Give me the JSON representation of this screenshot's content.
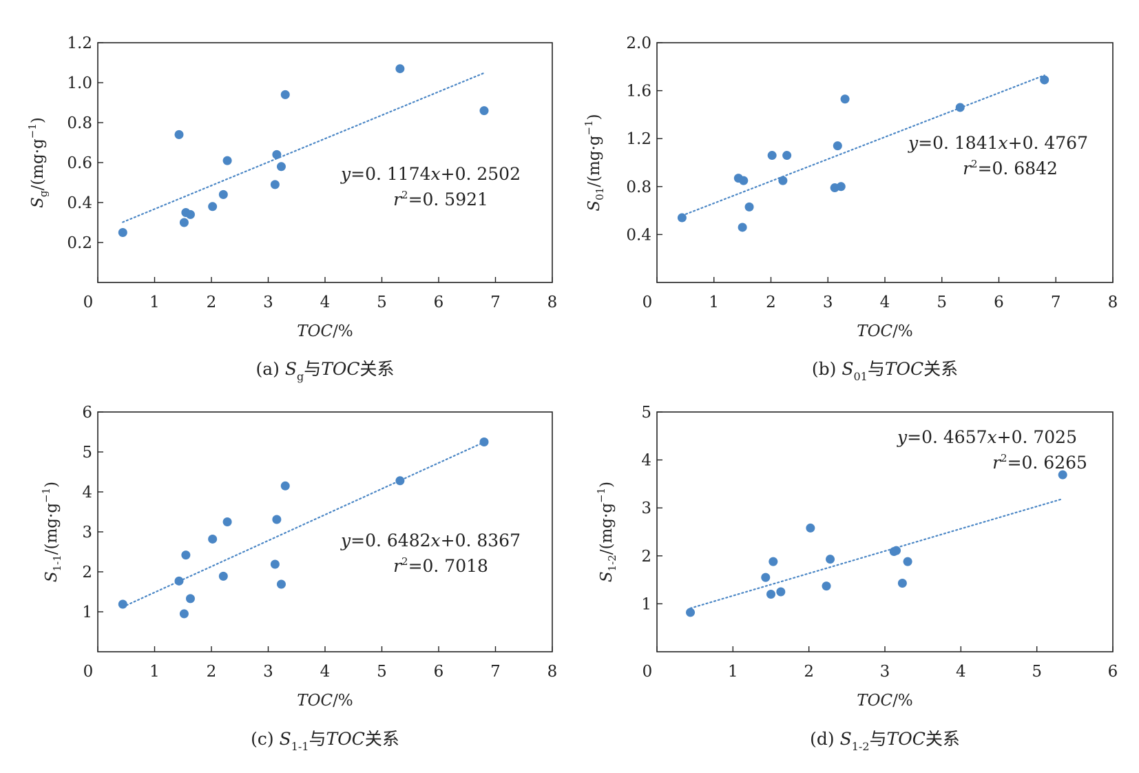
{
  "chart_data": [
    {
      "type": "scatter",
      "panel": "a",
      "caption": {
        "prefix": "(a)",
        "sym": "S",
        "sub": "g",
        "mid": "与",
        "var": "TOC",
        "suffix": "关系"
      },
      "ylabel": {
        "sym": "S",
        "sub": "g",
        "unit": "/(mg·g",
        "exp": "−1",
        "close": ")"
      },
      "xlabel": {
        "var": "TOC",
        "unit": "/%"
      },
      "xlim": [
        0,
        8
      ],
      "ylim": [
        0,
        1.2
      ],
      "xticks": [
        0,
        1,
        2,
        3,
        4,
        5,
        6,
        7,
        8
      ],
      "yticks": [
        0.2,
        0.4,
        0.6,
        0.8,
        1.0,
        1.2
      ],
      "ytick_labels": [
        "0.2",
        "0.4",
        "0.6",
        "0.8",
        "1.0",
        "1.2"
      ],
      "x": [
        0.44,
        1.43,
        1.52,
        1.55,
        1.63,
        2.02,
        2.21,
        2.28,
        3.12,
        3.15,
        3.23,
        3.3,
        5.32,
        6.8
      ],
      "y": [
        0.25,
        0.74,
        0.3,
        0.35,
        0.34,
        0.38,
        0.44,
        0.61,
        0.49,
        0.64,
        0.58,
        0.94,
        1.07,
        0.86
      ],
      "fit": {
        "slope": 0.1174,
        "intercept": 0.2502,
        "x_range": [
          0.44,
          6.8
        ]
      },
      "equation": {
        "y": "y",
        "eq": "=0. 1174",
        "x": "x",
        "rest": "+0. 2502"
      },
      "r2": {
        "r": "r",
        "sup": "2",
        "val": "=0. 5921"
      }
    },
    {
      "type": "scatter",
      "panel": "b",
      "caption": {
        "prefix": "(b)",
        "sym": "S",
        "sub": "01",
        "mid": "与",
        "var": "TOC",
        "suffix": "关系"
      },
      "ylabel": {
        "sym": "S",
        "sub": "01",
        "unit": "/(mg·g",
        "exp": "−1",
        "close": ")"
      },
      "xlabel": {
        "var": "TOC",
        "unit": "/%"
      },
      "xlim": [
        0,
        8
      ],
      "ylim": [
        0,
        2.0
      ],
      "xticks": [
        0,
        1,
        2,
        3,
        4,
        5,
        6,
        7,
        8
      ],
      "yticks": [
        0.4,
        0.8,
        1.2,
        1.6,
        2.0
      ],
      "ytick_labels": [
        "0.4",
        "0.8",
        "1.2",
        "1.6",
        "2.0"
      ],
      "x": [
        0.44,
        1.43,
        1.52,
        1.5,
        1.62,
        2.02,
        2.21,
        2.28,
        3.12,
        3.17,
        3.23,
        3.3,
        5.32,
        6.8
      ],
      "y": [
        0.54,
        0.87,
        0.85,
        0.46,
        0.63,
        1.06,
        0.85,
        1.06,
        0.79,
        1.14,
        0.8,
        1.53,
        1.46,
        1.69
      ],
      "fit": {
        "slope": 0.1841,
        "intercept": 0.4767,
        "x_range": [
          0.44,
          6.8
        ]
      },
      "equation": {
        "y": "y",
        "eq": "=0. 1841",
        "x": "x",
        "rest": "+0. 4767"
      },
      "r2": {
        "r": "r",
        "sup": "2",
        "val": "=0. 6842"
      }
    },
    {
      "type": "scatter",
      "panel": "c",
      "caption": {
        "prefix": "(c)",
        "sym": "S",
        "sub": "1-1",
        "mid": "与",
        "var": "TOC",
        "suffix": "关系"
      },
      "ylabel": {
        "sym": "S",
        "sub": "1-1",
        "unit": "/(mg·g",
        "exp": "−1",
        "close": ")"
      },
      "xlabel": {
        "var": "TOC",
        "unit": "/%"
      },
      "xlim": [
        0,
        8
      ],
      "ylim": [
        0,
        6
      ],
      "xticks": [
        0,
        1,
        2,
        3,
        4,
        5,
        6,
        7,
        8
      ],
      "yticks": [
        1,
        2,
        3,
        4,
        5,
        6
      ],
      "ytick_labels": [
        "1",
        "2",
        "3",
        "4",
        "5",
        "6"
      ],
      "x": [
        0.44,
        1.43,
        1.52,
        1.55,
        1.63,
        2.02,
        2.21,
        2.28,
        3.12,
        3.15,
        3.23,
        3.3,
        5.32,
        6.8
      ],
      "y": [
        1.19,
        1.77,
        0.95,
        2.42,
        1.33,
        2.82,
        1.89,
        3.25,
        2.19,
        3.31,
        1.69,
        4.15,
        4.28,
        5.25
      ],
      "fit": {
        "slope": 0.6482,
        "intercept": 0.8367,
        "x_range": [
          0.44,
          6.8
        ]
      },
      "equation": {
        "y": "y",
        "eq": "=0. 6482",
        "x": "x",
        "rest": "+0. 8367"
      },
      "r2": {
        "r": "r",
        "sup": "2",
        "val": "=0. 7018"
      }
    },
    {
      "type": "scatter",
      "panel": "d",
      "caption": {
        "prefix": "(d)",
        "sym": "S",
        "sub": "1-2",
        "mid": "与",
        "var": "TOC",
        "suffix": "关系"
      },
      "ylabel": {
        "sym": "S",
        "sub": "1-2",
        "unit": "/(mg·g",
        "exp": "−1",
        "close": ")"
      },
      "xlabel": {
        "var": "TOC",
        "unit": "/%"
      },
      "xlim": [
        0,
        6
      ],
      "ylim": [
        0,
        5
      ],
      "xticks": [
        0,
        1,
        2,
        3,
        4,
        5,
        6
      ],
      "yticks": [
        1,
        2,
        3,
        4,
        5
      ],
      "ytick_labels": [
        "1",
        "2",
        "3",
        "4",
        "5"
      ],
      "x": [
        0.44,
        1.43,
        1.5,
        1.53,
        1.63,
        2.02,
        2.23,
        2.28,
        3.12,
        3.15,
        3.23,
        3.3,
        5.34
      ],
      "y": [
        0.82,
        1.55,
        1.2,
        1.88,
        1.25,
        2.58,
        1.37,
        1.93,
        2.09,
        2.11,
        1.43,
        1.88,
        3.69
      ],
      "fit": {
        "slope": 0.4657,
        "intercept": 0.7025,
        "x_range": [
          0.44,
          5.34
        ]
      },
      "equation": {
        "y": "y",
        "eq": "=0. 4657",
        "x": "x",
        "rest": "+0. 7025"
      },
      "r2": {
        "r": "r",
        "sup": "2",
        "val": "=0. 6265"
      }
    }
  ]
}
